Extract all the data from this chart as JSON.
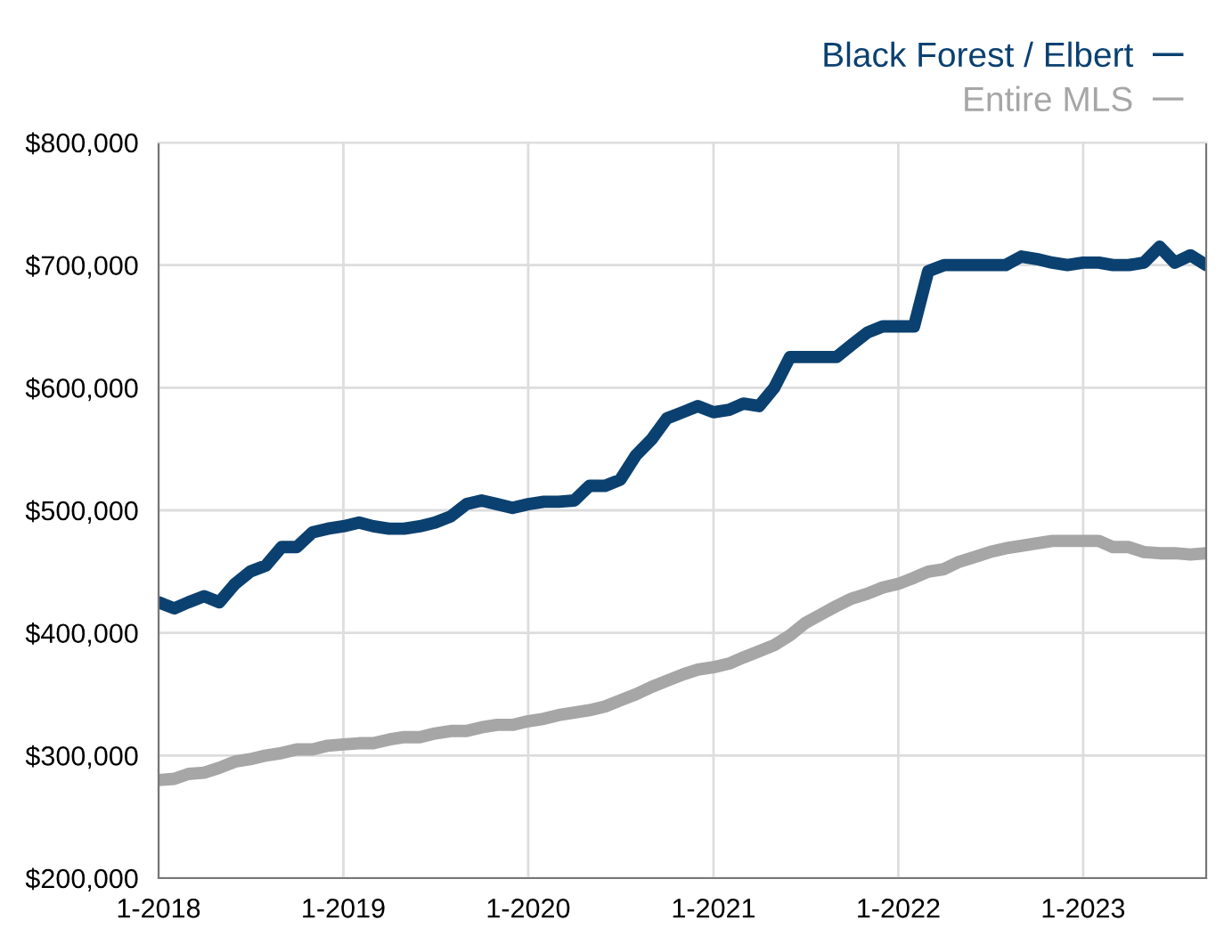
{
  "chart_data": {
    "type": "line",
    "x": [
      "2018-01",
      "2018-02",
      "2018-03",
      "2018-04",
      "2018-05",
      "2018-06",
      "2018-07",
      "2018-08",
      "2018-09",
      "2018-10",
      "2018-11",
      "2018-12",
      "2019-01",
      "2019-02",
      "2019-03",
      "2019-04",
      "2019-05",
      "2019-06",
      "2019-07",
      "2019-08",
      "2019-09",
      "2019-10",
      "2019-11",
      "2019-12",
      "2020-01",
      "2020-02",
      "2020-03",
      "2020-04",
      "2020-05",
      "2020-06",
      "2020-07",
      "2020-08",
      "2020-09",
      "2020-10",
      "2020-11",
      "2020-12",
      "2021-01",
      "2021-02",
      "2021-03",
      "2021-04",
      "2021-05",
      "2021-06",
      "2021-07",
      "2021-08",
      "2021-09",
      "2021-10",
      "2021-11",
      "2021-12",
      "2022-01",
      "2022-02",
      "2022-03",
      "2022-04",
      "2022-05",
      "2022-06",
      "2022-07",
      "2022-08",
      "2022-09",
      "2022-10",
      "2022-11",
      "2022-12",
      "2023-01",
      "2023-02",
      "2023-03",
      "2023-04",
      "2023-05",
      "2023-06",
      "2023-07",
      "2023-08",
      "2023-09"
    ],
    "series": [
      {
        "name": "Entire MLS",
        "color": "#a6a6a6",
        "values": [
          280000,
          281000,
          285000,
          286000,
          290000,
          295000,
          297000,
          300000,
          302000,
          305000,
          305000,
          308000,
          309000,
          310000,
          310000,
          313000,
          315000,
          315000,
          318000,
          320000,
          320000,
          323000,
          325000,
          325000,
          328000,
          330000,
          333000,
          335000,
          337000,
          340000,
          345000,
          350000,
          356000,
          361000,
          366000,
          370000,
          372000,
          375000,
          380000,
          385000,
          390000,
          398000,
          408000,
          415000,
          422000,
          428000,
          432000,
          437000,
          440000,
          445000,
          450000,
          452000,
          458000,
          462000,
          466000,
          469000,
          471000,
          473000,
          475000,
          475000,
          475000,
          475000,
          470000,
          470000,
          466000,
          465000,
          465000,
          464000,
          465000
        ]
      },
      {
        "name": "Black Forest / Elbert",
        "color": "#0b4170",
        "values": [
          425000,
          420000,
          425000,
          430000,
          425000,
          440000,
          450000,
          455000,
          470000,
          470000,
          482000,
          485000,
          487000,
          490000,
          487000,
          485000,
          485000,
          487000,
          490000,
          495000,
          505000,
          508000,
          505000,
          502000,
          505000,
          507000,
          507000,
          508000,
          520000,
          520000,
          525000,
          545000,
          558000,
          575000,
          580000,
          585000,
          580000,
          582000,
          587000,
          585000,
          600000,
          625000,
          625000,
          625000,
          625000,
          635000,
          645000,
          650000,
          650000,
          650000,
          695000,
          700000,
          700000,
          700000,
          700000,
          700000,
          707000,
          705000,
          702000,
          700000,
          702000,
          702000,
          700000,
          700000,
          702000,
          715000,
          702000,
          708000,
          700000
        ]
      }
    ],
    "xlim": [
      "2018-01",
      "2023-09"
    ],
    "xticks": [
      {
        "value": "2018-01",
        "label": "1-2018"
      },
      {
        "value": "2019-01",
        "label": "1-2019"
      },
      {
        "value": "2020-01",
        "label": "1-2020"
      },
      {
        "value": "2021-01",
        "label": "1-2021"
      },
      {
        "value": "2022-01",
        "label": "1-2022"
      },
      {
        "value": "2023-01",
        "label": "1-2023"
      }
    ],
    "ylim": [
      200000,
      800000
    ],
    "yticks": [
      {
        "value": 200000,
        "label": "$200,000"
      },
      {
        "value": 300000,
        "label": "$300,000"
      },
      {
        "value": 400000,
        "label": "$400,000"
      },
      {
        "value": 500000,
        "label": "$500,000"
      },
      {
        "value": 600000,
        "label": "$600,000"
      },
      {
        "value": 700000,
        "label": "$700,000"
      },
      {
        "value": 800000,
        "label": "$800,000"
      }
    ],
    "grid": true,
    "legend": "top right",
    "marker": "none",
    "line_style": "solid"
  }
}
